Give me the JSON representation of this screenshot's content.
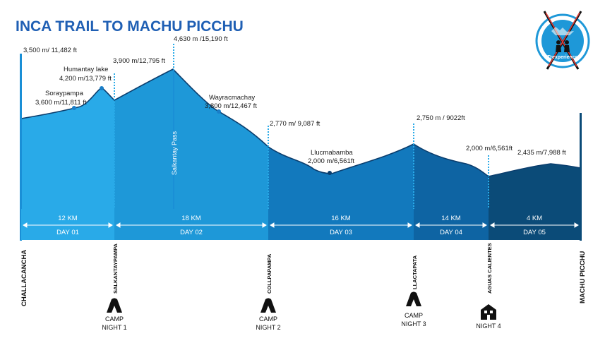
{
  "title": "INCA TRAIL TO MACHU PICCHU",
  "colors": {
    "title": "#1f5fb4",
    "day1": "#29aae8",
    "day2": "#1e98d8",
    "day3": "#1279bd",
    "day4": "#0e64a3",
    "day5": "#0b4b78",
    "band": "#1aa0e0",
    "outline": "#0b3e6e"
  },
  "altitudes": {
    "start": "3,500 m/ 11,482 ft",
    "soraypampa_name": "Soraypampa",
    "soraypampa": "3,600 m/11,811 ft",
    "humantay_name": "Humantay lake",
    "humantay": "4,200 m/13,779 ft",
    "salkantaypampa": "3,900 m/12,795 ft",
    "salkantay_pass": "4,630 m /15,190 ft",
    "wayracmachay_name": "Wayracmachay",
    "wayracmachay": "3,800 m/12,467 ft",
    "collpapampa": "2,770 m/ 9,087 ft",
    "llucmabamba_name": "Llucmabamba",
    "llucmabamba": "2,000 m/6,561ft",
    "llactapata": "2,750 m / 9022ft",
    "aguas_calientes": "2,000 m/6,561ft",
    "machu_picchu": "2,435 m/7,988 ft"
  },
  "pass_label": "Salkantay Pass",
  "days": [
    {
      "km": "12 KM",
      "label": "DAY 01"
    },
    {
      "km": "18 KM",
      "label": "DAY 02"
    },
    {
      "km": "16 KM",
      "label": "DAY 03"
    },
    {
      "km": "14 KM",
      "label": "DAY 04"
    },
    {
      "km": "4 KM",
      "label": "DAY 05"
    }
  ],
  "places": [
    "CHALLACANCHA",
    "SALKANTAYPAMPA",
    "COLLPAPAMPA",
    "LLACTAPATA",
    "AGUAS CALIENTES",
    "MACHU PICCHU"
  ],
  "camps": [
    {
      "line1": "CAMP",
      "line2": "NIGHT 1",
      "icon": "tent-icon"
    },
    {
      "line1": "CAMP",
      "line2": "NIGHT 2",
      "icon": "tent-icon"
    },
    {
      "line1": "CAMP",
      "line2": "NIGHT 3",
      "icon": "tent-icon"
    },
    {
      "line1": "",
      "line2": "NIGHT 4",
      "icon": "hotel-icon"
    }
  ],
  "logo": {
    "text": "Trexperience",
    "icon": "trekkers-logo-icon"
  }
}
